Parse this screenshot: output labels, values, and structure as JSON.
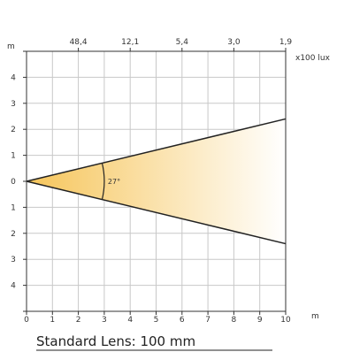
{
  "chart_data": {
    "type": "beam-diagram",
    "x_unit": "m",
    "y_unit": "m",
    "x_ticks": [
      "0",
      "1",
      "2",
      "3",
      "4",
      "5",
      "6",
      "7",
      "8",
      "9",
      "10"
    ],
    "y_ticks": [
      "4",
      "3",
      "2",
      "1",
      "0",
      "1",
      "2",
      "3",
      "4"
    ],
    "x_range": [
      0,
      10
    ],
    "y_range": [
      -5,
      5
    ],
    "lux_values": [
      "48,4",
      "12,1",
      "5,4",
      "3,0",
      "1,9"
    ],
    "lux_positions_m": [
      2,
      4,
      6,
      8,
      10
    ],
    "lux_unit": "x100 lux",
    "beam_angle": "27°",
    "beam_angle_deg": 27,
    "beam_half_width_at_10m": 2.4,
    "grid": true,
    "colors": {
      "beam_origin": "#f6c55a",
      "beam_end": "#ffffff",
      "beam_edge": "#222222",
      "grid": "#c8c8c8",
      "axis": "#333333"
    }
  },
  "caption": "Standard Lens: 100 mm"
}
